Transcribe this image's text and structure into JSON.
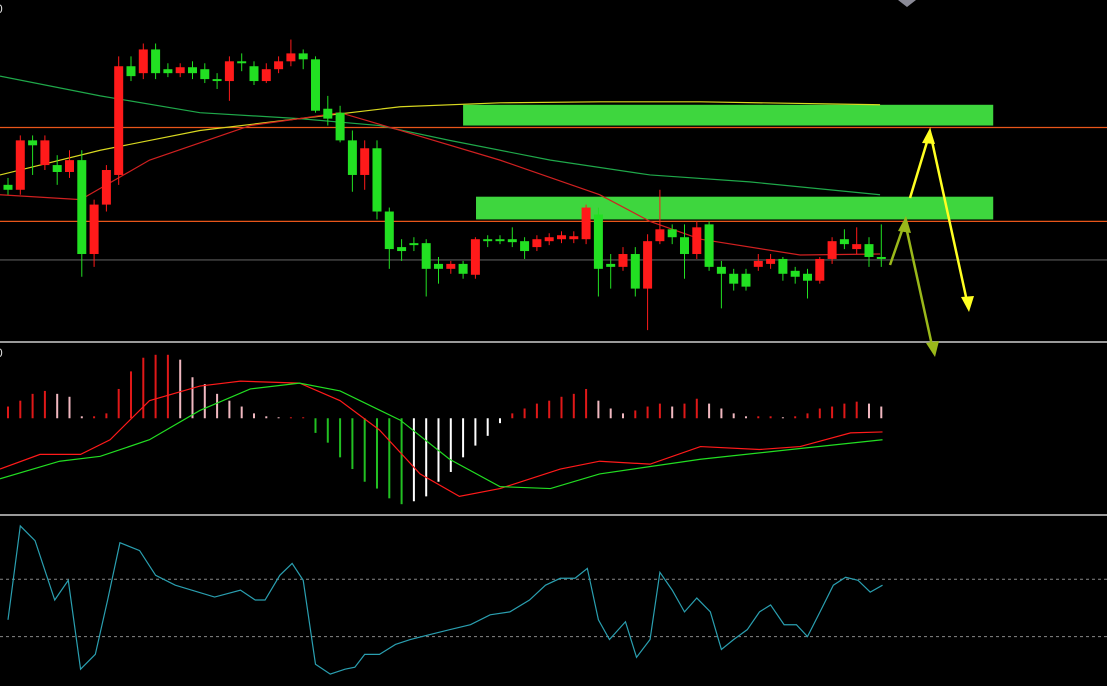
{
  "chart_data": [
    {
      "type": "candlestick",
      "label": "0",
      "xlim": [
        -0.65,
        89.35
      ],
      "ylim": [
        0,
        342
      ],
      "up_color": "#ff1a1a",
      "down_color": "#22e022",
      "open": [
        157,
        152,
        202,
        177,
        177,
        170,
        182,
        87,
        137,
        167,
        277,
        270,
        294,
        274,
        270,
        276,
        274,
        264,
        262,
        282,
        277,
        262,
        274,
        282,
        290,
        284,
        234,
        230,
        202,
        167,
        194,
        130,
        94,
        98,
        98,
        77,
        72,
        77,
        66,
        102,
        102,
        102,
        100,
        94,
        100,
        102,
        102,
        102,
        127,
        77,
        74,
        87,
        52,
        100,
        112,
        104,
        87,
        117,
        74,
        67,
        67,
        74,
        77,
        82,
        70,
        67,
        60,
        82,
        102,
        92,
        97,
        84
      ],
      "close": [
        152,
        202,
        197,
        202,
        170,
        182,
        87,
        137,
        172,
        277,
        267,
        294,
        270,
        270,
        276,
        270,
        264,
        262,
        282,
        280,
        262,
        274,
        282,
        290,
        284,
        232,
        224,
        202,
        167,
        194,
        130,
        92,
        90,
        96,
        72,
        72,
        77,
        67,
        102,
        100,
        100,
        99,
        90,
        102,
        104,
        106,
        105,
        134,
        72,
        74,
        87,
        52,
        100,
        112,
        104,
        87,
        114,
        74,
        67,
        57,
        54,
        80,
        82,
        67,
        64,
        60,
        82,
        100,
        97,
        97,
        84,
        82
      ],
      "high": [
        164,
        207,
        207,
        207,
        187,
        192,
        192,
        142,
        177,
        287,
        287,
        300,
        300,
        280,
        280,
        282,
        280,
        270,
        287,
        290,
        282,
        280,
        287,
        304,
        294,
        287,
        247,
        237,
        212,
        202,
        202,
        134,
        102,
        104,
        102,
        84,
        80,
        80,
        104,
        106,
        106,
        114,
        104,
        106,
        108,
        110,
        110,
        137,
        134,
        87,
        94,
        94,
        107,
        152,
        117,
        117,
        120,
        120,
        80,
        72,
        72,
        87,
        87,
        84,
        74,
        72,
        84,
        104,
        112,
        114,
        104,
        117
      ],
      "low": [
        147,
        147,
        167,
        172,
        157,
        164,
        64,
        74,
        130,
        157,
        262,
        264,
        264,
        266,
        266,
        264,
        260,
        254,
        242,
        272,
        258,
        260,
        270,
        277,
        274,
        230,
        217,
        200,
        150,
        152,
        122,
        72,
        80,
        90,
        44,
        57,
        67,
        62,
        62,
        94,
        97,
        94,
        82,
        90,
        96,
        98,
        98,
        97,
        44,
        52,
        70,
        44,
        10,
        97,
        97,
        62,
        82,
        70,
        32,
        50,
        50,
        70,
        72,
        60,
        57,
        42,
        57,
        77,
        92,
        87,
        74,
        74
      ],
      "series": [
        {
          "color": "#1fa84a",
          "x": [
            -0.65,
            7.5,
            15.6,
            23.7,
            30.2,
            35.9,
            44.1,
            52.2,
            60.3,
            70.9
          ],
          "values": [
            267,
            247,
            230,
            224,
            217,
            202,
            182,
            167,
            160,
            147
          ]
        },
        {
          "color": "#d8d820",
          "x": [
            -0.65,
            7.5,
            15.6,
            23.7,
            31.9,
            40,
            48.1,
            56.3,
            70.9
          ],
          "values": [
            167,
            192,
            212,
            224,
            236,
            240,
            241,
            241,
            238
          ]
        },
        {
          "color": "#d02020",
          "x": [
            -0.65,
            5.9,
            11.5,
            19.7,
            23.7,
            27,
            31.9,
            40,
            48.1,
            52.2,
            56.3,
            64.4,
            70.9
          ],
          "values": [
            147,
            142,
            182,
            217,
            224,
            230,
            212,
            182,
            147,
            120,
            102,
            86,
            87
          ]
        }
      ],
      "levels": [
        {
          "value": 215,
          "color": "#e8561a"
        },
        {
          "value": 120,
          "color": "#e8561a"
        },
        {
          "value": 81,
          "color": "#5a5a5a"
        }
      ],
      "zones": [
        {
          "x": [
            37,
            80.1
          ],
          "y": [
            217,
            238
          ],
          "color": "#3ed63e"
        },
        {
          "x": [
            38.05,
            80.1
          ],
          "y": [
            122,
            145
          ],
          "color": "#3ed63e"
        }
      ]
    },
    {
      "type": "macd",
      "label": "0",
      "xlim": [
        -0.65,
        89.35
      ],
      "ylim": [
        -96,
        74
      ],
      "values": [
        12,
        18,
        25,
        28,
        25,
        22,
        2,
        2,
        5,
        30,
        48,
        62,
        65,
        65,
        60,
        42,
        35,
        25,
        18,
        12,
        5,
        2,
        1,
        1,
        1,
        -15,
        -25,
        -40,
        -52,
        -65,
        -72,
        -82,
        -88,
        -85,
        -80,
        -65,
        -55,
        -40,
        -28,
        -18,
        -5,
        5,
        10,
        15,
        18,
        22,
        25,
        30,
        18,
        10,
        5,
        8,
        12,
        15,
        12,
        15,
        20,
        15,
        10,
        5,
        2,
        2,
        2,
        1,
        2,
        5,
        10,
        12,
        15,
        17,
        15,
        12
      ],
      "bar_colors": {
        "rising": "#e01818",
        "falling": "#f0b8c0",
        "negative_falling": "#22c022",
        "negative_rising": "#ffffff"
      },
      "series": [
        {
          "color": "#ff1a1a",
          "x": [
            -0.65,
            2.6,
            5.9,
            8.3,
            11.5,
            15.6,
            18.9,
            23.7,
            27,
            30.2,
            33.5,
            36.7,
            40,
            44.9,
            48.1,
            52.2,
            56.3,
            61.1,
            64.4,
            68.5,
            71.1
          ],
          "values": [
            -52,
            -37,
            -37,
            -22,
            18,
            33,
            38,
            36,
            18,
            -12,
            -57,
            -80,
            -72,
            -52,
            -44,
            -47,
            -29,
            -32,
            -29,
            -15,
            -14
          ]
        },
        {
          "color": "#22dd22",
          "x": [
            -0.65,
            4.2,
            7.5,
            11.5,
            15.6,
            19.7,
            23.7,
            27,
            31.9,
            35.9,
            40,
            44.1,
            48.1,
            56.3,
            64.4,
            71.1
          ],
          "values": [
            -62,
            -44,
            -39,
            -22,
            8,
            30,
            36,
            28,
            -2,
            -42,
            -70,
            -72,
            -57,
            -42,
            -31,
            -22
          ]
        }
      ]
    },
    {
      "type": "line",
      "xlim": [
        -0.65,
        89.35
      ],
      "ylim": [
        0,
        168
      ],
      "color": "#2a9fb0",
      "levels": [
        106,
        48
      ],
      "x": [
        0,
        1,
        2.2,
        3.8,
        4.9,
        5.9,
        7.1,
        8.1,
        9.1,
        10.7,
        12,
        13.6,
        16.8,
        18.9,
        20.1,
        20.9,
        22.1,
        23.1,
        24,
        25,
        26.2,
        27.4,
        28.2,
        29,
        30.2,
        31.5,
        32.7,
        34.3,
        35.9,
        37.6,
        39.2,
        40.8,
        42.4,
        43.7,
        44.9,
        46.1,
        47.1,
        48,
        48.9,
        50.2,
        51.1,
        52.2,
        53,
        54,
        55,
        56,
        57.1,
        58,
        59,
        60.1,
        61.1,
        62,
        63.1,
        64.1,
        65,
        66.1,
        67.1,
        68.1,
        69.1,
        70.1,
        71.1
      ],
      "values": [
        65,
        160,
        145,
        85,
        105,
        15,
        30,
        85,
        143,
        135,
        110,
        100,
        88,
        95,
        85,
        85,
        110,
        122,
        105,
        20,
        10,
        15,
        17,
        30,
        30,
        40,
        45,
        50,
        55,
        60,
        70,
        73,
        85,
        100,
        107,
        107,
        117,
        65,
        45,
        63,
        27,
        45,
        113,
        95,
        73,
        87,
        73,
        35,
        45,
        55,
        73,
        80,
        60,
        60,
        48,
        75,
        100,
        108,
        105,
        93,
        100
      ]
    }
  ]
}
